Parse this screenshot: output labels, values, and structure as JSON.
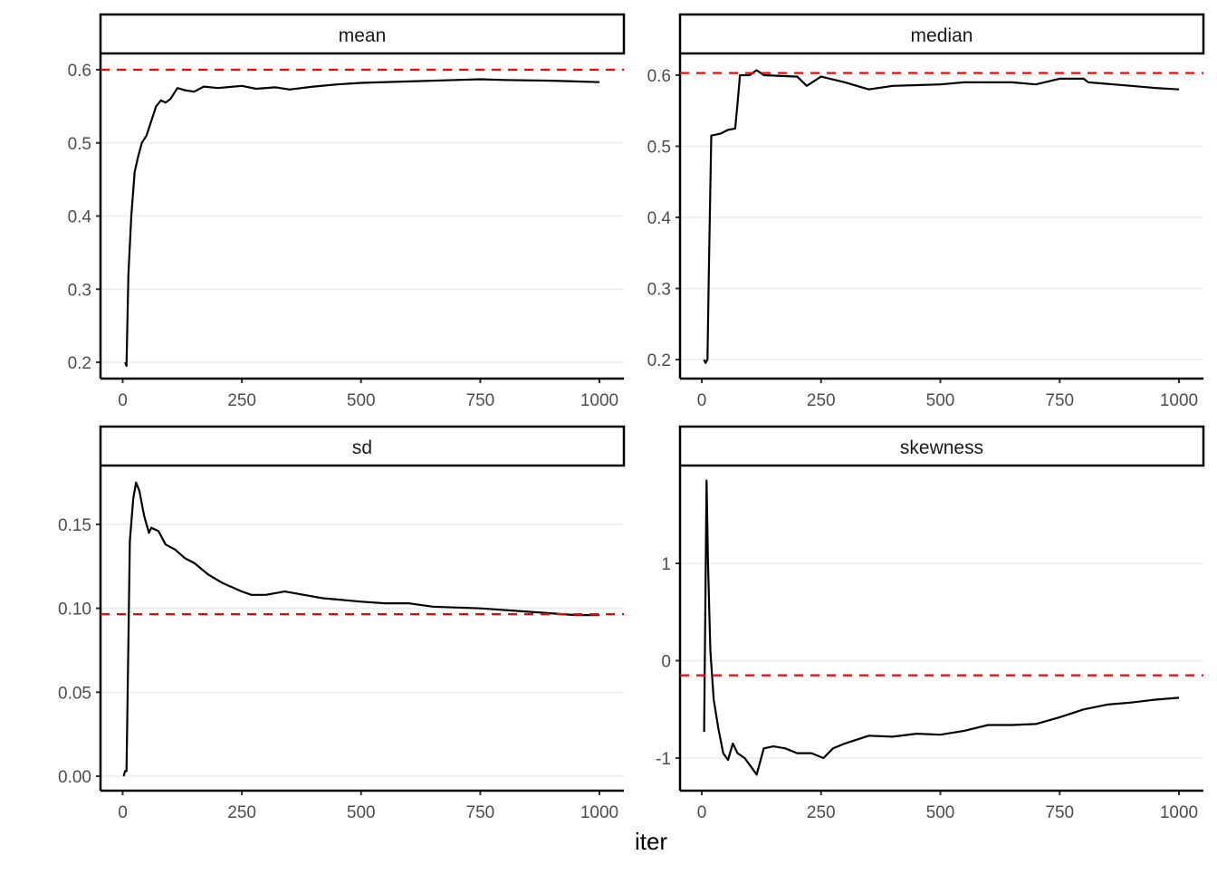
{
  "chart_data": [
    {
      "type": "line",
      "facet": "mean",
      "xlim": [
        0,
        1000
      ],
      "ylim": [
        0.2,
        0.6
      ],
      "xticks": [
        0,
        250,
        500,
        750,
        1000
      ],
      "yticks": [
        0.2,
        0.3,
        0.4,
        0.5,
        0.6
      ],
      "ytick_labels": [
        "0.2",
        "0.3",
        "0.4",
        "0.5",
        "0.6"
      ],
      "reference_line": 0.6,
      "x": [
        5,
        8,
        12,
        18,
        25,
        32,
        40,
        50,
        60,
        70,
        80,
        90,
        100,
        115,
        130,
        150,
        170,
        200,
        250,
        280,
        320,
        350,
        400,
        450,
        500,
        600,
        700,
        750,
        800,
        900,
        1000
      ],
      "y": [
        0.2,
        0.195,
        0.32,
        0.4,
        0.46,
        0.48,
        0.5,
        0.51,
        0.53,
        0.55,
        0.558,
        0.555,
        0.56,
        0.575,
        0.572,
        0.57,
        0.577,
        0.575,
        0.578,
        0.574,
        0.576,
        0.573,
        0.577,
        0.58,
        0.582,
        0.584,
        0.586,
        0.587,
        0.586,
        0.585,
        0.583
      ]
    },
    {
      "type": "line",
      "facet": "median",
      "xlim": [
        0,
        1000
      ],
      "ylim": [
        0.2,
        0.6
      ],
      "xticks": [
        0,
        250,
        500,
        750,
        1000
      ],
      "yticks": [
        0.2,
        0.3,
        0.4,
        0.5,
        0.6
      ],
      "ytick_labels": [
        "0.2",
        "0.3",
        "0.4",
        "0.5",
        "0.6"
      ],
      "reference_line": 0.603,
      "x": [
        5,
        8,
        12,
        15,
        20,
        40,
        55,
        70,
        75,
        80,
        100,
        115,
        130,
        200,
        220,
        250,
        300,
        350,
        400,
        500,
        550,
        600,
        650,
        700,
        750,
        800,
        810,
        900,
        950,
        1000
      ],
      "y": [
        0.2,
        0.195,
        0.2,
        0.33,
        0.515,
        0.518,
        0.523,
        0.525,
        0.56,
        0.6,
        0.6,
        0.607,
        0.6,
        0.598,
        0.585,
        0.598,
        0.59,
        0.58,
        0.585,
        0.587,
        0.59,
        0.59,
        0.59,
        0.587,
        0.595,
        0.595,
        0.59,
        0.585,
        0.582,
        0.58
      ]
    },
    {
      "type": "line",
      "facet": "sd",
      "xlim": [
        0,
        1000
      ],
      "ylim": [
        0,
        0.15
      ],
      "xticks": [
        0,
        250,
        500,
        750,
        1000
      ],
      "yticks": [
        0,
        0.05,
        0.1,
        0.15
      ],
      "ytick_labels": [
        "0.00",
        "0.05",
        "0.10",
        "0.15"
      ],
      "reference_line": 0.0965,
      "x": [
        2,
        5,
        8,
        12,
        15,
        22,
        28,
        35,
        45,
        55,
        60,
        75,
        90,
        110,
        130,
        150,
        180,
        210,
        250,
        270,
        300,
        340,
        380,
        420,
        500,
        550,
        600,
        650,
        750,
        850,
        950,
        1000
      ],
      "y": [
        0,
        0.003,
        0.003,
        0.08,
        0.14,
        0.165,
        0.175,
        0.17,
        0.155,
        0.145,
        0.148,
        0.146,
        0.138,
        0.135,
        0.13,
        0.127,
        0.12,
        0.115,
        0.11,
        0.108,
        0.108,
        0.11,
        0.108,
        0.106,
        0.104,
        0.103,
        0.103,
        0.101,
        0.1,
        0.098,
        0.096,
        0.096
      ]
    },
    {
      "type": "line",
      "facet": "skewness",
      "xlim": [
        0,
        1000
      ],
      "ylim": [
        -1,
        1
      ],
      "xticks": [
        0,
        250,
        500,
        750,
        1000
      ],
      "yticks": [
        -1,
        0,
        1
      ],
      "ytick_labels": [
        "-1",
        "0",
        "1"
      ],
      "reference_line": -0.15,
      "x": [
        5,
        10,
        13,
        18,
        25,
        35,
        45,
        55,
        65,
        75,
        90,
        105,
        115,
        130,
        150,
        175,
        200,
        230,
        255,
        275,
        300,
        350,
        400,
        450,
        500,
        550,
        600,
        650,
        700,
        750,
        800,
        850,
        900,
        950,
        1000
      ],
      "y": [
        -0.73,
        1.85,
        1.0,
        0.1,
        -0.4,
        -0.7,
        -0.95,
        -1.02,
        -0.85,
        -0.95,
        -1.0,
        -1.1,
        -1.17,
        -0.9,
        -0.88,
        -0.9,
        -0.95,
        -0.95,
        -1.0,
        -0.9,
        -0.85,
        -0.77,
        -0.78,
        -0.75,
        -0.76,
        -0.72,
        -0.66,
        -0.66,
        -0.65,
        -0.58,
        -0.5,
        -0.45,
        -0.43,
        -0.4,
        -0.38
      ]
    }
  ],
  "xlabel": "iter",
  "colors": {
    "series": "#000000",
    "reference": "#ff0000",
    "grid": "#ebebeb"
  }
}
